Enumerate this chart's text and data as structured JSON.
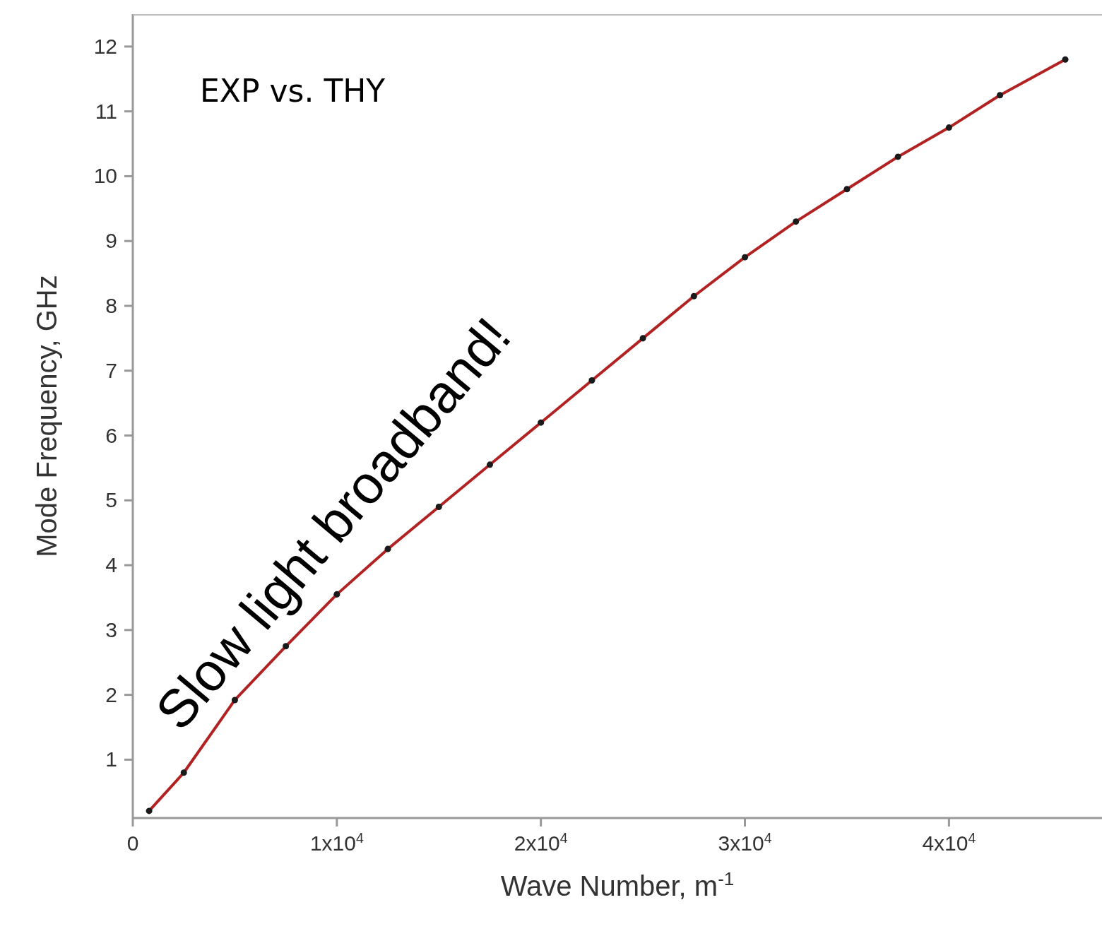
{
  "chart_data": {
    "type": "line",
    "xlabel": "Wave Number, m$^{-1}$",
    "ylabel": "Mode Frequency, GHz",
    "annotations": [
      "EXP vs. THY",
      "Slow light broadband!"
    ],
    "x": [
      800,
      2500,
      5000,
      7500,
      10000,
      12500,
      15000,
      17500,
      20000,
      22500,
      25000,
      27500,
      30000,
      32500,
      35000,
      37500,
      40000,
      42500,
      45700
    ],
    "series": [
      {
        "type": "scatter",
        "marker": "circle",
        "color": "#1a1a1a",
        "values": [
          0.21,
          0.8,
          1.92,
          2.75,
          3.55,
          4.25,
          4.9,
          5.55,
          6.2,
          6.85,
          7.5,
          8.15,
          8.75,
          9.3,
          9.8,
          10.3,
          10.75,
          11.25,
          11.8
        ]
      },
      {
        "marker": "none",
        "color": "#b22222",
        "values": [
          0.21,
          0.8,
          1.92,
          2.75,
          3.55,
          4.25,
          4.9,
          5.55,
          6.2,
          6.85,
          7.5,
          8.15,
          8.75,
          9.3,
          9.8,
          10.3,
          10.75,
          11.25,
          11.8
        ]
      }
    ],
    "xlim": [
      0,
      47500
    ],
    "xticks": [
      0,
      {
        "value": 10000,
        "label": "1x10$^{4}$"
      },
      {
        "value": 20000,
        "label": "2x10$^{4}$"
      },
      {
        "value": 30000,
        "label": "3x10$^{4}$"
      },
      {
        "value": 40000,
        "label": "4x10$^{4}$"
      }
    ],
    "ylim": [
      0.1,
      12.5
    ],
    "yticks": [
      1,
      2,
      3,
      4,
      5,
      6,
      7,
      8,
      9,
      10,
      11,
      12
    ],
    "grid": false,
    "legend": false,
    "line_style": "solid"
  }
}
